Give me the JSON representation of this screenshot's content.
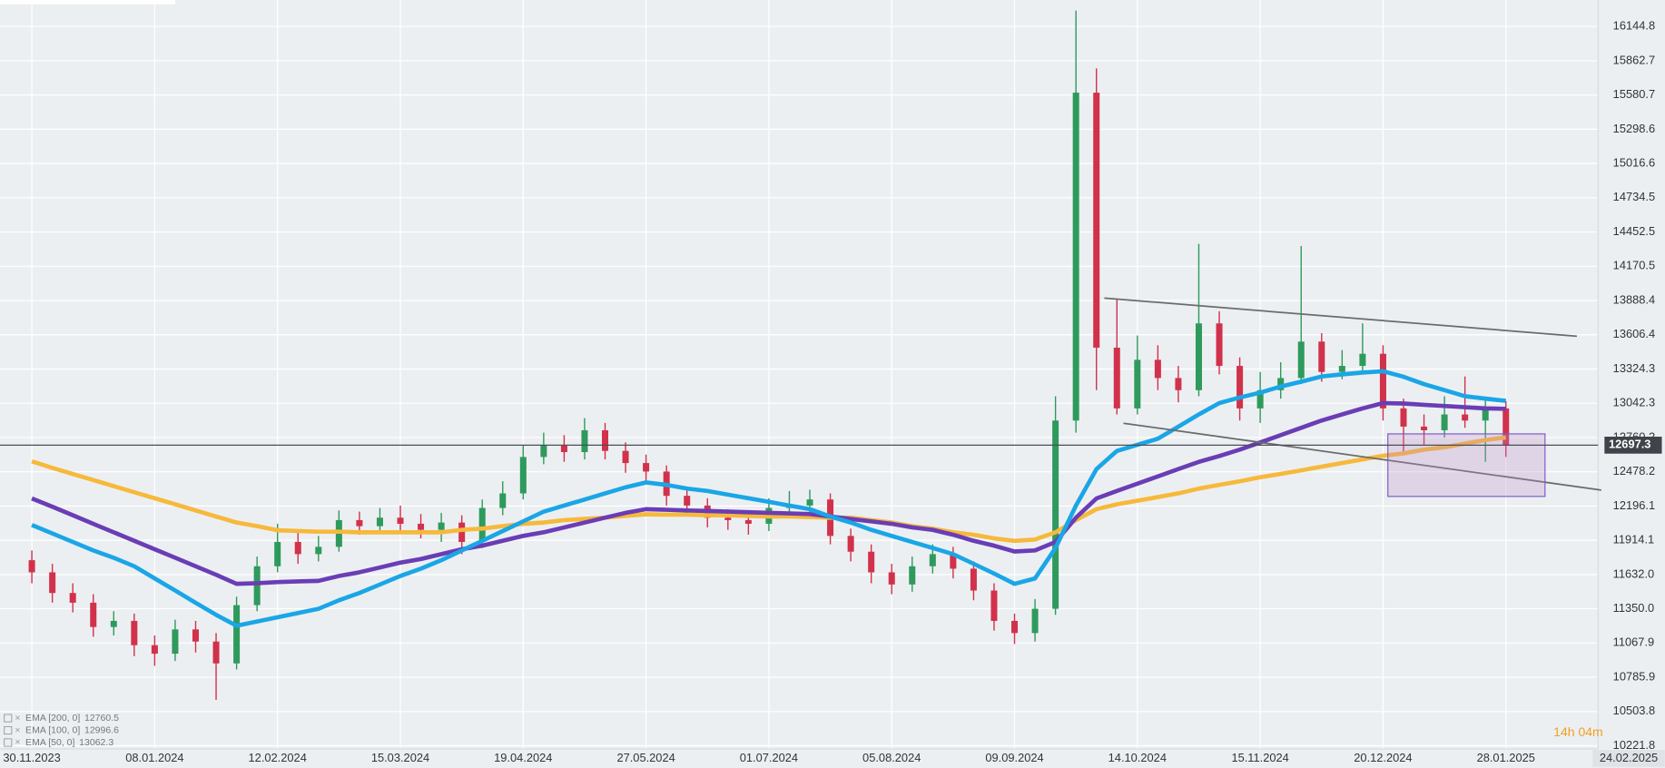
{
  "chart_data": {
    "type": "candlestick",
    "categories": [
      "30.11.2023",
      null,
      null,
      null,
      null,
      null,
      "08.01.2024",
      null,
      null,
      null,
      null,
      null,
      "12.02.2024",
      null,
      null,
      null,
      null,
      null,
      "15.03.2024",
      null,
      null,
      null,
      null,
      null,
      "19.04.2024",
      null,
      null,
      null,
      null,
      null,
      "27.05.2024",
      null,
      null,
      null,
      null,
      null,
      "01.07.2024",
      null,
      null,
      null,
      null,
      null,
      "05.08.2024",
      null,
      null,
      null,
      null,
      null,
      "09.09.2024",
      null,
      null,
      null,
      null,
      null,
      "14.10.2024",
      null,
      null,
      null,
      null,
      null,
      "15.11.2024",
      null,
      null,
      null,
      null,
      null,
      "20.12.2024",
      null,
      null,
      null,
      null,
      null,
      "28.01.2025",
      null,
      null,
      null,
      null,
      null,
      "24.02.2025"
    ],
    "open": [
      11750,
      11650,
      11480,
      11400,
      11200,
      11250,
      11050,
      10980,
      11180,
      11080,
      10900,
      11380,
      11700,
      11900,
      11800,
      11860,
      12080,
      12030,
      12100,
      12050,
      12000,
      12060,
      11900,
      12180,
      12300,
      12600,
      12700,
      12640,
      12820,
      12650,
      12550,
      12480,
      12280,
      12200,
      12100,
      12080,
      12050,
      12180,
      12200,
      12250,
      11950,
      11820,
      11650,
      11550,
      11700,
      11800,
      11680,
      11500,
      11250,
      11150,
      11350,
      12900,
      15600,
      13500,
      13000,
      13400,
      13250,
      13150,
      13700,
      13350,
      13000,
      13150,
      13250,
      13550,
      13300,
      13350,
      13450,
      13000,
      12850,
      12820,
      12950,
      12900,
      13000,
      null,
      null,
      null,
      null,
      null,
      null
    ],
    "high": [
      11830,
      11720,
      11560,
      11470,
      11330,
      11310,
      11130,
      11260,
      11250,
      11150,
      11450,
      11780,
      12050,
      11980,
      11950,
      12160,
      12150,
      12180,
      12200,
      12130,
      12140,
      12120,
      12250,
      12400,
      12700,
      12800,
      12780,
      12920,
      12880,
      12720,
      12620,
      12530,
      12340,
      12260,
      12170,
      12150,
      12260,
      12320,
      12330,
      12300,
      12010,
      11880,
      11720,
      11780,
      11880,
      11860,
      11740,
      11560,
      11310,
      11430,
      13100,
      16276,
      15800,
      13900,
      13600,
      13520,
      13350,
      14355,
      13800,
      13420,
      13300,
      13380,
      14337,
      13620,
      13480,
      13700,
      13520,
      13080,
      12950,
      13100,
      13263,
      13080,
      13060,
      null,
      null,
      null,
      null,
      null,
      null
    ],
    "low": [
      11560,
      11400,
      11320,
      11120,
      11130,
      10960,
      10880,
      10920,
      10990,
      10600,
      10850,
      11330,
      11650,
      11720,
      11740,
      11820,
      11960,
      11970,
      11990,
      11930,
      11900,
      11800,
      11850,
      12120,
      12250,
      12540,
      12560,
      12580,
      12580,
      12470,
      12400,
      12200,
      12120,
      12020,
      12000,
      11960,
      11990,
      12110,
      12130,
      11880,
      11740,
      11560,
      11470,
      11490,
      11640,
      11600,
      11420,
      11170,
      11060,
      11080,
      11300,
      12800,
      13150,
      12950,
      12950,
      13150,
      13050,
      13100,
      13280,
      12900,
      12880,
      13080,
      13200,
      13220,
      13240,
      13300,
      12900,
      12620,
      12700,
      12760,
      12840,
      12560,
      12600,
      null,
      null,
      null,
      null,
      null,
      null
    ],
    "close": [
      11650,
      11480,
      11400,
      11200,
      11250,
      11050,
      10980,
      11180,
      11080,
      10900,
      11380,
      11700,
      11900,
      11800,
      11860,
      12080,
      12030,
      12100,
      12050,
      12000,
      12060,
      11900,
      12180,
      12300,
      12600,
      12700,
      12640,
      12820,
      12650,
      12550,
      12480,
      12280,
      12200,
      12100,
      12080,
      12050,
      12180,
      12200,
      12250,
      11950,
      11820,
      11650,
      11550,
      11700,
      11800,
      11680,
      11500,
      11250,
      11150,
      11350,
      12900,
      15600,
      13500,
      13000,
      13400,
      13250,
      13150,
      13700,
      13350,
      13000,
      13150,
      13250,
      13550,
      13300,
      13350,
      13450,
      13000,
      12850,
      12820,
      12950,
      12900,
      13000,
      12697.3,
      null,
      null,
      null,
      null,
      null,
      null
    ],
    "up_color": "#2e9a5c",
    "down_color": "#d2314b",
    "series": [
      {
        "name": "EMA [200, 0]",
        "color": "#f6b93b",
        "values": [
          12564,
          12510,
          12460,
          12410,
          12360,
          12310,
          12260,
          12210,
          12160,
          12110,
          12060,
          12030,
          11996,
          11990,
          11985,
          11985,
          11980,
          11980,
          11980,
          11980,
          11980,
          12000,
          12010,
          12030,
          12050,
          12060,
          12080,
          12090,
          12100,
          12115,
          12128,
          12125,
          12125,
          12120,
          12120,
          12115,
          12110,
          12110,
          12105,
          12100,
          12100,
          12080,
          12060,
          12030,
          12010,
          11980,
          11960,
          11930,
          11909,
          11920,
          11980,
          12080,
          12170,
          12210,
          12240,
          12270,
          12300,
          12340,
          12370,
          12400,
          12433,
          12460,
          12490,
          12520,
          12550,
          12580,
          12610,
          12630,
          12660,
          12680,
          12710,
          12740,
          12760.5,
          null,
          null,
          null,
          null,
          null,
          null
        ]
      },
      {
        "name": "EMA [100, 0]",
        "color": "#6a3db5",
        "values": [
          12258,
          12190,
          12120,
          12050,
          11980,
          11910,
          11840,
          11770,
          11700,
          11630,
          11555,
          11560,
          11570,
          11575,
          11580,
          11620,
          11650,
          11690,
          11730,
          11760,
          11800,
          11840,
          11870,
          11910,
          11950,
          11980,
          12020,
          12060,
          12100,
          12140,
          12170,
          12165,
          12160,
          12155,
          12150,
          12145,
          12140,
          12135,
          12130,
          12110,
          12090,
          12070,
          12050,
          12020,
          12000,
          11960,
          11910,
          11870,
          11822,
          11830,
          11900,
          12100,
          12258,
          12320,
          12380,
          12440,
          12500,
          12560,
          12608,
          12660,
          12720,
          12780,
          12840,
          12900,
          12950,
          13000,
          13044,
          13040,
          13030,
          13020,
          13010,
          13000,
          12996.6,
          null,
          null,
          null,
          null,
          null,
          null
        ]
      },
      {
        "name": "EMA [50, 0]",
        "color": "#1aa6e6",
        "values": [
          12040,
          11970,
          11900,
          11830,
          11770,
          11700,
          11600,
          11500,
          11400,
          11300,
          11210,
          11245,
          11280,
          11315,
          11350,
          11420,
          11480,
          11550,
          11620,
          11680,
          11750,
          11830,
          11910,
          11990,
          12070,
          12150,
          12200,
          12250,
          12300,
          12350,
          12390,
          12370,
          12340,
          12320,
          12290,
          12260,
          12230,
          12200,
          12170,
          12110,
          12060,
          12000,
          11950,
          11900,
          11850,
          11800,
          11720,
          11640,
          11555,
          11600,
          11850,
          12200,
          12500,
          12650,
          12700,
          12750,
          12850,
          12950,
          13044,
          13090,
          13130,
          13180,
          13220,
          13263,
          13280,
          13295,
          13306,
          13260,
          13200,
          13150,
          13100,
          13080,
          13062.3,
          null,
          null,
          null,
          null,
          null,
          null
        ]
      }
    ],
    "ylim": [
      10196,
      16363
    ],
    "yticks": [
      10221.8,
      10503.8,
      10785.9,
      11067.9,
      {
        "value": 11350.0,
        "label": "11350.0"
      },
      {
        "value": 11632.0,
        "label": "11632.0"
      },
      11914.1,
      12196.1,
      12478.2,
      12760.2,
      13042.3,
      13324.3,
      13606.4,
      13888.4,
      14170.5,
      14452.5,
      14734.5,
      15016.6,
      15298.6,
      15580.7,
      15862.7,
      16144.8
    ],
    "grid": true,
    "last_price": 12697.3,
    "countdown": "14h 04m"
  }
}
